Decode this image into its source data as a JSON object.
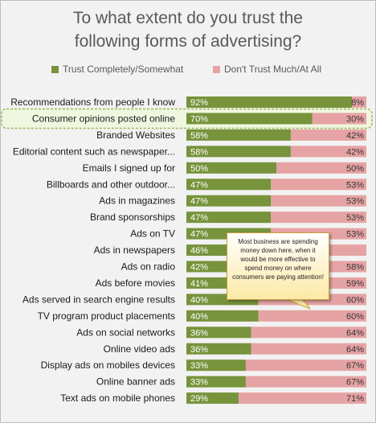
{
  "chart_data": {
    "type": "bar",
    "stacked": true,
    "orientation": "horizontal",
    "title_lines": [
      "To what extent do you trust the",
      "following forms of advertising?"
    ],
    "legend_position": "top",
    "categories": [
      "Recommendations from people I know",
      "Consumer opinions posted online",
      "Branded Websites",
      "Editorial content such as newspaper...",
      "Emails I signed up for",
      "Billboards and other outdoor...",
      "Ads in magazines",
      "Brand sponsorships",
      "Ads on TV",
      "Ads in newspapers",
      "Ads on radio",
      "Ads before movies",
      "Ads served in search engine results",
      "TV program product placements",
      "Ads on social networks",
      "Online video ads",
      "Display ads on mobiles devices",
      "Online banner ads",
      "Text ads on mobile phones"
    ],
    "series": [
      {
        "name": "Trust Completely/Somewhat",
        "color": "#77933c",
        "values": [
          92,
          70,
          58,
          58,
          50,
          47,
          47,
          47,
          47,
          46,
          42,
          41,
          40,
          40,
          36,
          36,
          33,
          33,
          29
        ],
        "labels": [
          "92%",
          "70%",
          "58%",
          "58%",
          "50%",
          "47%",
          "47%",
          "47%",
          "47%",
          "46%",
          "42%",
          "41%",
          "40%",
          "40%",
          "36%",
          "36%",
          "33%",
          "33%",
          "29%"
        ]
      },
      {
        "name": "Don't Trust Much/At All",
        "color": "#e6a3a3",
        "values": [
          8,
          30,
          42,
          42,
          50,
          53,
          53,
          53,
          53,
          54,
          58,
          59,
          60,
          60,
          64,
          64,
          67,
          67,
          71
        ],
        "labels": [
          "8%",
          "30%",
          "42%",
          "42%",
          "50%",
          "53%",
          "53%",
          "53%",
          "53%",
          "",
          "58%",
          "59%",
          "60%",
          "60%",
          "64%",
          "64%",
          "67%",
          "67%",
          "71%"
        ]
      }
    ],
    "xlim": [
      0,
      100
    ],
    "highlighted_category": "Consumer opinions posted online",
    "annotation": "Most business are spending money down here, when it would be more effective to spend money on where consumers are paying attention!"
  }
}
